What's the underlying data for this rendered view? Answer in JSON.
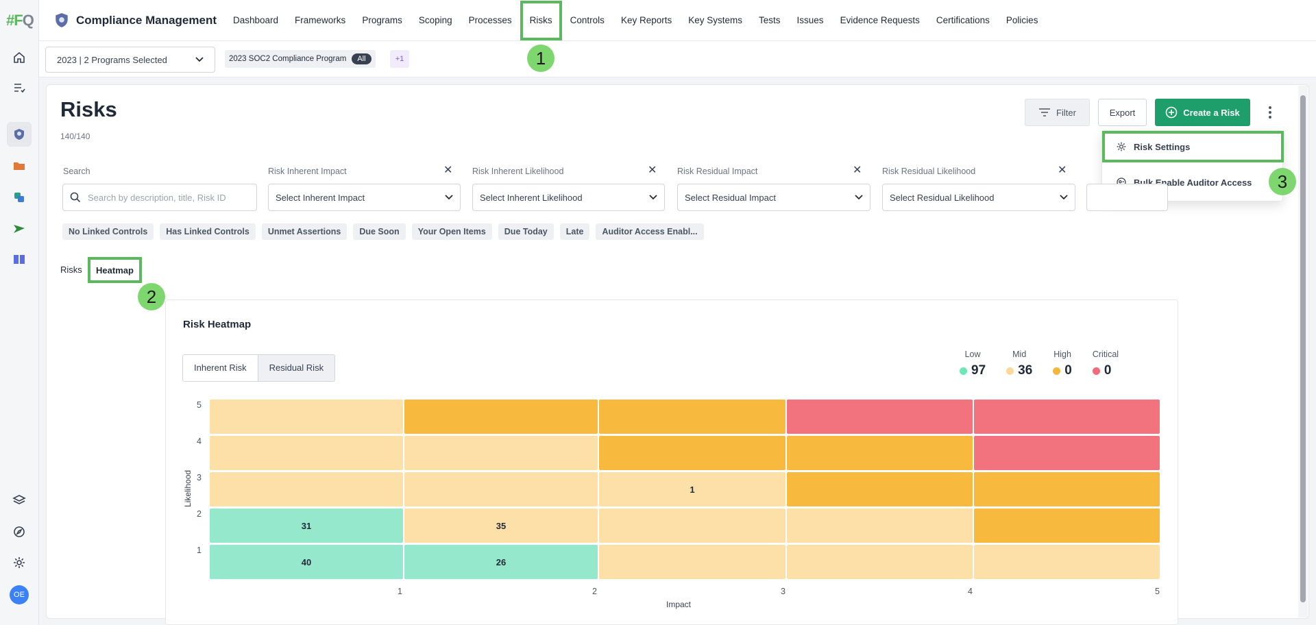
{
  "rail": {
    "logo_a": "#F",
    "logo_b": "Q",
    "avatar": "OE"
  },
  "app": {
    "title": "Compliance Management"
  },
  "nav": [
    "Dashboard",
    "Frameworks",
    "Programs",
    "Scoping",
    "Processes",
    "Risks",
    "Controls",
    "Key Reports",
    "Key Systems",
    "Tests",
    "Issues",
    "Evidence Requests",
    "Certifications",
    "Policies"
  ],
  "nav_active": "Risks",
  "subbar": {
    "year_select": "2023 | 2 Programs Selected",
    "program_chip": "2023 SOC2 Compliance Program",
    "program_pill": "All",
    "more_chip": "+1"
  },
  "page": {
    "title": "Risks",
    "count": "140/140"
  },
  "actions": {
    "filter": "Filter",
    "export": "Export",
    "create": "Create a Risk"
  },
  "menu": {
    "risk_settings": "Risk Settings",
    "bulk_enable": "Bulk Enable Auditor Access"
  },
  "callouts": [
    "1",
    "2",
    "3"
  ],
  "filters": {
    "search_label": "Search",
    "search_placeholder": "Search by description, title, Risk ID",
    "inherent_impact_label": "Risk Inherent Impact",
    "inherent_impact_ph": "Select Inherent Impact",
    "inherent_likelihood_label": "Risk Inherent Likelihood",
    "inherent_likelihood_ph": "Select Inherent Likelihood",
    "residual_impact_label": "Risk Residual Impact",
    "residual_impact_ph": "Select Residual Impact",
    "residual_likelihood_label": "Risk Residual Likelihood",
    "residual_likelihood_ph": "Select Residual Likelihood"
  },
  "chips": [
    "No Linked Controls",
    "Has Linked Controls",
    "Unmet Assertions",
    "Due Soon",
    "Your Open Items",
    "Due Today",
    "Late",
    "Auditor Access Enabl..."
  ],
  "tabs": {
    "risks": "Risks",
    "heatmap": "Heatmap"
  },
  "heatmap": {
    "title": "Risk Heatmap",
    "toggle_inherent": "Inherent Risk",
    "toggle_residual": "Residual Risk",
    "legend": [
      {
        "name": "Low",
        "value": "97",
        "color": "#6ee7b7"
      },
      {
        "name": "Mid",
        "value": "36",
        "color": "#fcd99b"
      },
      {
        "name": "High",
        "value": "0",
        "color": "#f5b73d"
      },
      {
        "name": "Critical",
        "value": "0",
        "color": "#f26b7a"
      }
    ],
    "y_axis_label": "Likelihood",
    "x_axis_label": "Impact"
  },
  "chart_data": {
    "type": "heatmap",
    "title": "Risk Heatmap",
    "xlabel": "Impact",
    "ylabel": "Likelihood",
    "x": [
      1,
      2,
      3,
      4,
      5
    ],
    "y": [
      1,
      2,
      3,
      4,
      5
    ],
    "colors": {
      "low": "#95e8cb",
      "mid": "#fde0a8",
      "high": "#f8b93f",
      "critical": "#f2737e"
    },
    "levels": [
      [
        "low",
        "low",
        "mid",
        "mid",
        "mid"
      ],
      [
        "low",
        "mid",
        "mid",
        "mid",
        "high"
      ],
      [
        "mid",
        "mid",
        "mid",
        "high",
        "high"
      ],
      [
        "mid",
        "mid",
        "high",
        "high",
        "critical"
      ],
      [
        "mid",
        "high",
        "high",
        "critical",
        "critical"
      ]
    ],
    "counts": [
      [
        "40",
        "26",
        "",
        "",
        ""
      ],
      [
        "31",
        "35",
        "",
        "",
        ""
      ],
      [
        "",
        "",
        "1",
        "",
        ""
      ],
      [
        "",
        "",
        "",
        "",
        ""
      ],
      [
        "",
        "",
        "",
        "",
        ""
      ]
    ]
  }
}
